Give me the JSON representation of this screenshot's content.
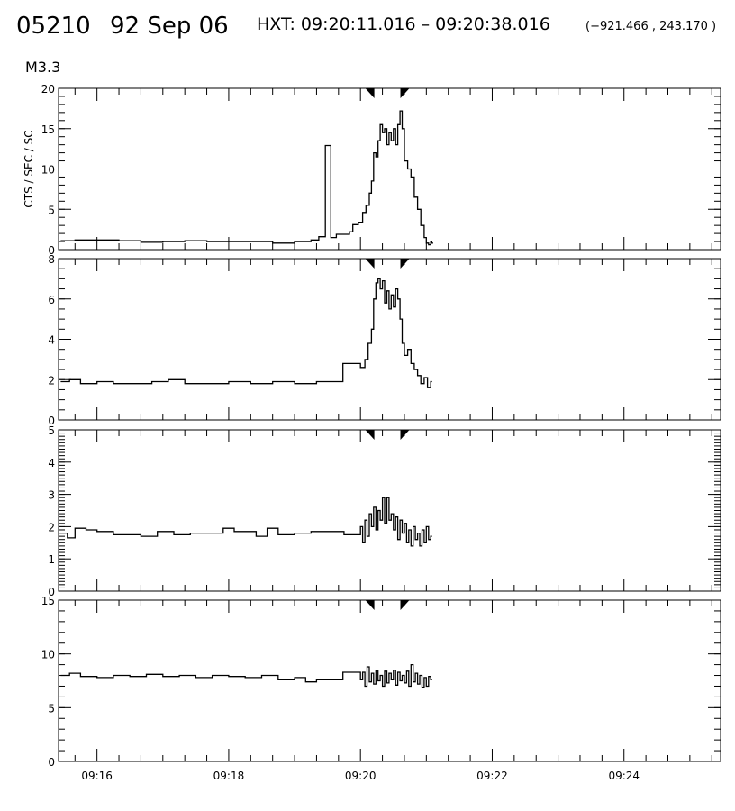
{
  "header": {
    "event_id": "05210",
    "date": "92 Sep 06",
    "hxt_range": "HXT: 09:20:11.016 – 09:20:38.016",
    "position": "(−921.466 , 243.170 )",
    "goes_class": "M3.3"
  },
  "chart_data": [
    {
      "type": "line",
      "ylabel": "CTS / SEC / SC",
      "ylim": [
        0,
        20
      ],
      "yticks": [
        0,
        5,
        10,
        15,
        20
      ],
      "yminor": 1,
      "series": [
        {
          "points": [
            [
              "09:15:27",
              1.1
            ],
            [
              "09:15:40",
              1.2
            ],
            [
              "09:16:00",
              1.2
            ],
            [
              "09:16:20",
              1.1
            ],
            [
              "09:16:40",
              0.9
            ],
            [
              "09:17:00",
              1.0
            ],
            [
              "09:17:20",
              1.1
            ],
            [
              "09:17:40",
              1.0
            ],
            [
              "09:18:00",
              1.0
            ],
            [
              "09:18:20",
              1.0
            ],
            [
              "09:18:40",
              0.8
            ],
            [
              "09:19:00",
              1.0
            ],
            [
              "09:19:15",
              1.2
            ],
            [
              "09:19:22",
              1.6
            ],
            [
              "09:19:28",
              12.9
            ],
            [
              "09:19:33",
              1.5
            ],
            [
              "09:19:38",
              1.9
            ],
            [
              "09:19:50",
              2.2
            ],
            [
              "09:19:53",
              3.1
            ],
            [
              "09:19:58",
              3.4
            ],
            [
              "09:20:02",
              4.6
            ],
            [
              "09:20:05",
              5.5
            ],
            [
              "09:20:08",
              7.0
            ],
            [
              "09:20:10",
              8.5
            ],
            [
              "09:20:12",
              12.0
            ],
            [
              "09:20:14",
              11.5
            ],
            [
              "09:20:16",
              13.5
            ],
            [
              "09:20:18",
              15.5
            ],
            [
              "09:20:20",
              14.5
            ],
            [
              "09:20:22",
              15.0
            ],
            [
              "09:20:24",
              13.0
            ],
            [
              "09:20:26",
              14.5
            ],
            [
              "09:20:28",
              13.5
            ],
            [
              "09:20:30",
              15.0
            ],
            [
              "09:20:32",
              13.0
            ],
            [
              "09:20:34",
              15.5
            ],
            [
              "09:20:36",
              17.2
            ],
            [
              "09:20:38",
              15.0
            ],
            [
              "09:20:40",
              11.0
            ],
            [
              "09:20:43",
              10.0
            ],
            [
              "09:20:46",
              9.0
            ],
            [
              "09:20:49",
              6.5
            ],
            [
              "09:20:52",
              5.0
            ],
            [
              "09:20:55",
              3.0
            ],
            [
              "09:20:58",
              1.5
            ],
            [
              "09:21:00",
              0.8
            ],
            [
              "09:21:02",
              0.6
            ],
            [
              "09:21:04",
              1.0
            ],
            [
              "09:21:05",
              0.8
            ]
          ]
        }
      ]
    },
    {
      "type": "line",
      "ylim": [
        0,
        8
      ],
      "yticks": [
        0,
        2,
        4,
        6,
        8
      ],
      "yminor": 0.5,
      "series": [
        {
          "points": [
            [
              "09:15:27",
              1.9
            ],
            [
              "09:15:35",
              2.0
            ],
            [
              "09:15:45",
              1.8
            ],
            [
              "09:16:00",
              1.9
            ],
            [
              "09:16:15",
              1.8
            ],
            [
              "09:16:30",
              1.8
            ],
            [
              "09:16:50",
              1.9
            ],
            [
              "09:17:05",
              2.0
            ],
            [
              "09:17:20",
              1.8
            ],
            [
              "09:17:40",
              1.8
            ],
            [
              "09:18:00",
              1.9
            ],
            [
              "09:18:20",
              1.8
            ],
            [
              "09:18:40",
              1.9
            ],
            [
              "09:19:00",
              1.8
            ],
            [
              "09:19:20",
              1.9
            ],
            [
              "09:19:44",
              2.8
            ],
            [
              "09:20:00",
              2.6
            ],
            [
              "09:20:04",
              3.0
            ],
            [
              "09:20:07",
              3.8
            ],
            [
              "09:20:10",
              4.5
            ],
            [
              "09:20:12",
              6.0
            ],
            [
              "09:20:14",
              6.8
            ],
            [
              "09:20:16",
              7.0
            ],
            [
              "09:20:18",
              6.5
            ],
            [
              "09:20:20",
              6.9
            ],
            [
              "09:20:22",
              5.8
            ],
            [
              "09:20:24",
              6.4
            ],
            [
              "09:20:26",
              5.5
            ],
            [
              "09:20:28",
              6.2
            ],
            [
              "09:20:30",
              5.6
            ],
            [
              "09:20:32",
              6.5
            ],
            [
              "09:20:34",
              6.0
            ],
            [
              "09:20:36",
              5.0
            ],
            [
              "09:20:38",
              3.8
            ],
            [
              "09:20:40",
              3.2
            ],
            [
              "09:20:43",
              3.5
            ],
            [
              "09:20:46",
              2.8
            ],
            [
              "09:20:49",
              2.5
            ],
            [
              "09:20:52",
              2.2
            ],
            [
              "09:20:55",
              1.8
            ],
            [
              "09:20:58",
              2.1
            ],
            [
              "09:21:01",
              1.6
            ],
            [
              "09:21:04",
              1.9
            ]
          ]
        }
      ]
    },
    {
      "type": "line",
      "ylim": [
        0,
        5
      ],
      "yticks": [
        0,
        1,
        2,
        3,
        4,
        5
      ],
      "yminor": 0.1,
      "series": [
        {
          "points": [
            [
              "09:15:25",
              1.8
            ],
            [
              "09:15:33",
              1.65
            ],
            [
              "09:15:40",
              1.95
            ],
            [
              "09:15:50",
              1.9
            ],
            [
              "09:16:00",
              1.85
            ],
            [
              "09:16:15",
              1.75
            ],
            [
              "09:16:25",
              1.75
            ],
            [
              "09:16:40",
              1.7
            ],
            [
              "09:16:55",
              1.85
            ],
            [
              "09:17:10",
              1.75
            ],
            [
              "09:17:25",
              1.8
            ],
            [
              "09:17:40",
              1.8
            ],
            [
              "09:17:55",
              1.95
            ],
            [
              "09:18:05",
              1.85
            ],
            [
              "09:18:25",
              1.7
            ],
            [
              "09:18:35",
              1.95
            ],
            [
              "09:18:45",
              1.75
            ],
            [
              "09:19:00",
              1.8
            ],
            [
              "09:19:15",
              1.85
            ],
            [
              "09:19:30",
              1.85
            ],
            [
              "09:19:45",
              1.75
            ],
            [
              "09:20:00",
              2.0
            ],
            [
              "09:20:02",
              1.5
            ],
            [
              "09:20:04",
              2.2
            ],
            [
              "09:20:06",
              1.7
            ],
            [
              "09:20:08",
              2.4
            ],
            [
              "09:20:10",
              2.0
            ],
            [
              "09:20:12",
              2.6
            ],
            [
              "09:20:14",
              1.9
            ],
            [
              "09:20:16",
              2.5
            ],
            [
              "09:20:18",
              2.2
            ],
            [
              "09:20:20",
              2.9
            ],
            [
              "09:20:22",
              2.1
            ],
            [
              "09:20:24",
              2.9
            ],
            [
              "09:20:26",
              2.2
            ],
            [
              "09:20:28",
              2.4
            ],
            [
              "09:20:30",
              1.9
            ],
            [
              "09:20:32",
              2.3
            ],
            [
              "09:20:34",
              1.6
            ],
            [
              "09:20:36",
              2.2
            ],
            [
              "09:20:38",
              1.8
            ],
            [
              "09:20:40",
              2.1
            ],
            [
              "09:20:42",
              1.5
            ],
            [
              "09:20:44",
              1.9
            ],
            [
              "09:20:46",
              1.4
            ],
            [
              "09:20:48",
              2.0
            ],
            [
              "09:20:50",
              1.6
            ],
            [
              "09:20:52",
              1.8
            ],
            [
              "09:20:54",
              1.4
            ],
            [
              "09:20:56",
              1.9
            ],
            [
              "09:20:58",
              1.5
            ],
            [
              "09:21:00",
              2.0
            ],
            [
              "09:21:02",
              1.6
            ],
            [
              "09:21:04",
              1.7
            ]
          ]
        }
      ]
    },
    {
      "type": "line",
      "ylim": [
        0,
        15
      ],
      "yticks": [
        0,
        5,
        10,
        15
      ],
      "yminor": 1,
      "xlim": [
        "09:15:25",
        "09:25:28"
      ],
      "xticks": [
        "09:16",
        "09:18",
        "09:20",
        "09:22",
        "09:24"
      ],
      "series": [
        {
          "points": [
            [
              "09:15:27",
              8.0
            ],
            [
              "09:15:35",
              8.2
            ],
            [
              "09:15:45",
              7.9
            ],
            [
              "09:16:00",
              7.8
            ],
            [
              "09:16:15",
              8.0
            ],
            [
              "09:16:30",
              7.9
            ],
            [
              "09:16:45",
              8.1
            ],
            [
              "09:17:00",
              7.9
            ],
            [
              "09:17:15",
              8.0
            ],
            [
              "09:17:30",
              7.8
            ],
            [
              "09:17:45",
              8.0
            ],
            [
              "09:18:00",
              7.9
            ],
            [
              "09:18:15",
              7.8
            ],
            [
              "09:18:30",
              8.0
            ],
            [
              "09:18:45",
              7.6
            ],
            [
              "09:19:00",
              7.8
            ],
            [
              "09:19:10",
              7.4
            ],
            [
              "09:19:20",
              7.6
            ],
            [
              "09:19:44",
              8.3
            ],
            [
              "09:20:00",
              7.6
            ],
            [
              "09:20:02",
              8.3
            ],
            [
              "09:20:04",
              7.0
            ],
            [
              "09:20:06",
              8.8
            ],
            [
              "09:20:08",
              7.4
            ],
            [
              "09:20:10",
              8.2
            ],
            [
              "09:20:12",
              7.2
            ],
            [
              "09:20:14",
              8.5
            ],
            [
              "09:20:16",
              7.5
            ],
            [
              "09:20:18",
              8.0
            ],
            [
              "09:20:20",
              7.0
            ],
            [
              "09:20:22",
              8.4
            ],
            [
              "09:20:24",
              7.3
            ],
            [
              "09:20:26",
              8.2
            ],
            [
              "09:20:28",
              7.6
            ],
            [
              "09:20:30",
              8.5
            ],
            [
              "09:20:32",
              7.1
            ],
            [
              "09:20:34",
              8.3
            ],
            [
              "09:20:36",
              7.5
            ],
            [
              "09:20:38",
              8.0
            ],
            [
              "09:20:40",
              7.3
            ],
            [
              "09:20:42",
              8.4
            ],
            [
              "09:20:44",
              7.0
            ],
            [
              "09:20:46",
              9.0
            ],
            [
              "09:20:48",
              7.4
            ],
            [
              "09:20:50",
              8.2
            ],
            [
              "09:20:52",
              7.2
            ],
            [
              "09:20:54",
              8.0
            ],
            [
              "09:20:56",
              6.9
            ],
            [
              "09:20:58",
              7.8
            ],
            [
              "09:21:00",
              7.0
            ],
            [
              "09:21:02",
              7.9
            ],
            [
              "09:21:04",
              7.6
            ]
          ]
        }
      ]
    }
  ],
  "markers": [
    "09:20:11",
    "09:20:38"
  ],
  "xlim": [
    "09:15:25",
    "09:25:28"
  ],
  "xminor_seconds": 20,
  "line_color": "#000000"
}
